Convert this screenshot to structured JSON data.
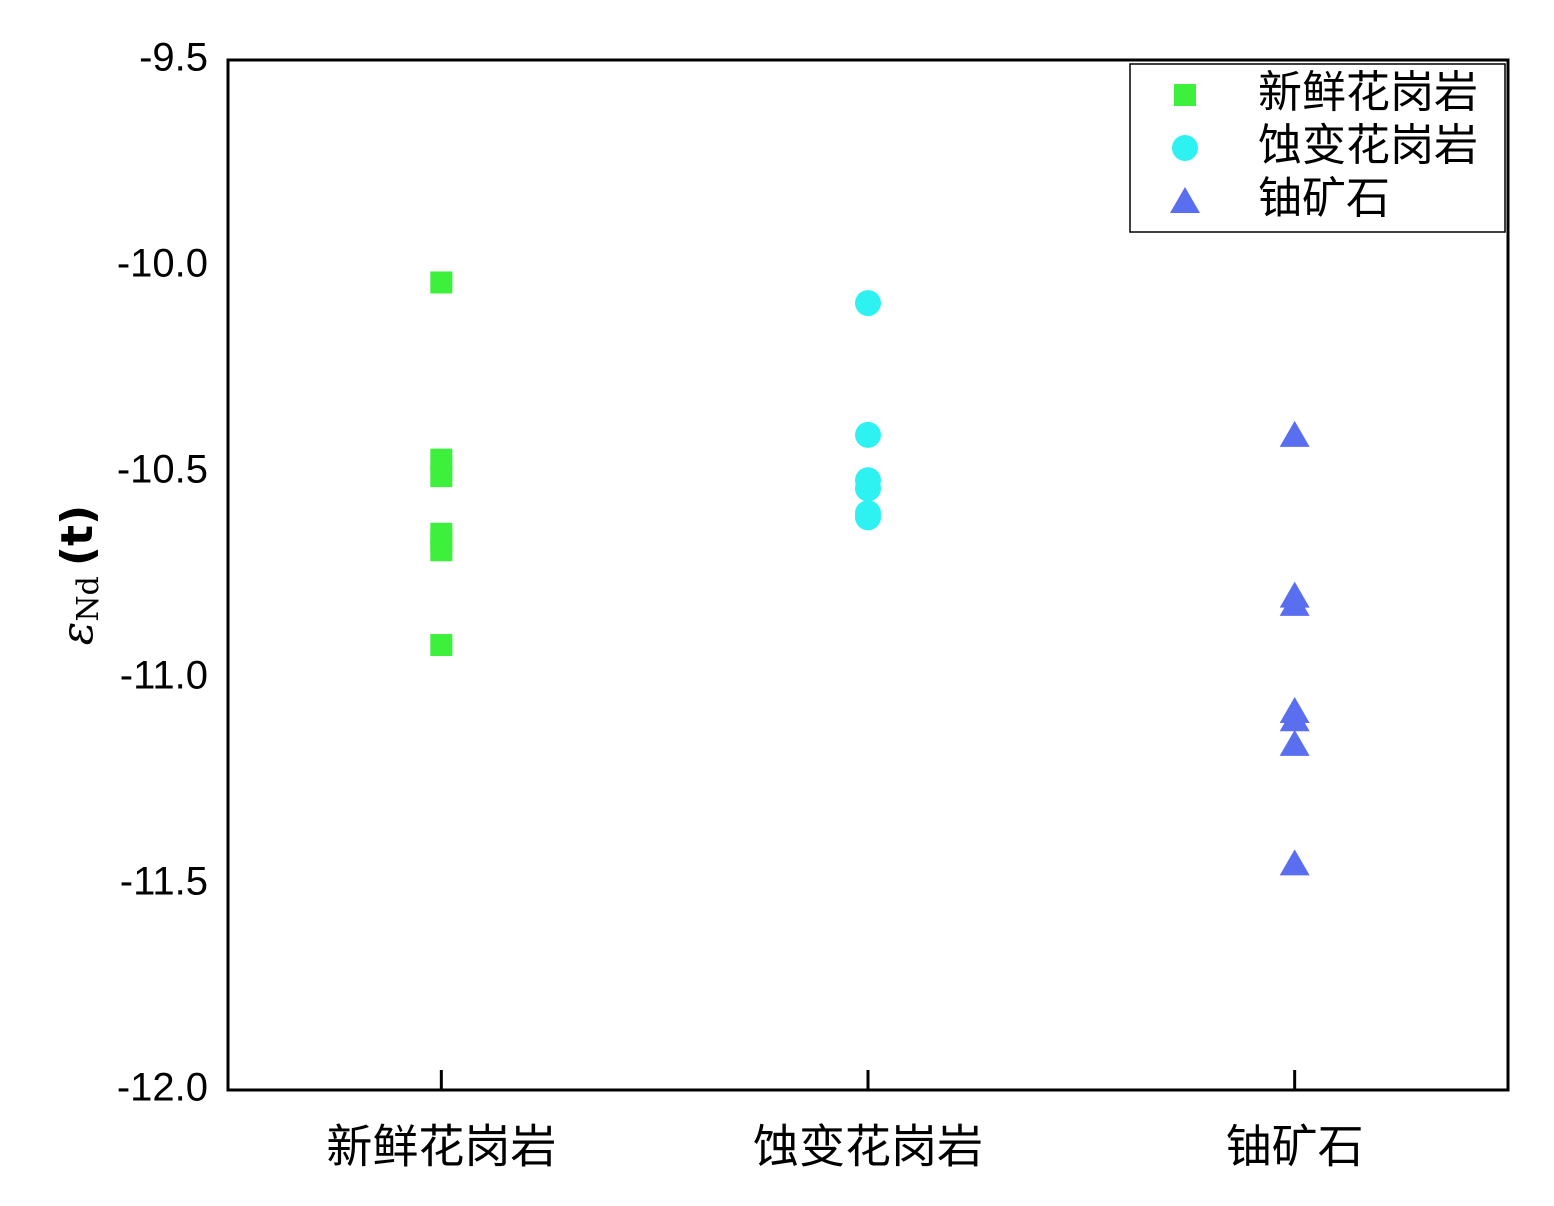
{
  "chart_data": {
    "type": "scatter",
    "ylabel": [
      "ε",
      "Nd",
      "(t)"
    ],
    "categories": [
      "新鲜花岗岩",
      "蚀变花岗岩",
      "铀矿石"
    ],
    "ylim": [
      -12.0,
      -9.5
    ],
    "yticks": [
      -9.5,
      {
        "value": -10.0,
        "label": "-10.0"
      },
      -10.5,
      {
        "value": -11.0,
        "label": "-11.0"
      },
      -11.5,
      {
        "value": -12.0,
        "label": "-12.0"
      }
    ],
    "legend": "upper right",
    "series": [
      {
        "name": "新鲜花岗岩",
        "color": "#3cf03c",
        "marker": "square",
        "values": [
          -10.04,
          -10.47,
          -10.51,
          -10.65,
          -10.67,
          -10.69,
          -10.92
        ]
      },
      {
        "name": "蚀变花岗岩",
        "color": "#2ef2f2",
        "marker": "circle",
        "values": [
          -10.09,
          -10.41,
          -10.52,
          -10.54,
          -10.6,
          -10.61
        ]
      },
      {
        "name": "铀矿石",
        "color": "#5a6ef0",
        "marker": "triangle",
        "values": [
          -10.41,
          -10.8,
          -10.82,
          -11.08,
          -11.1,
          -11.16,
          -11.45
        ]
      }
    ]
  }
}
